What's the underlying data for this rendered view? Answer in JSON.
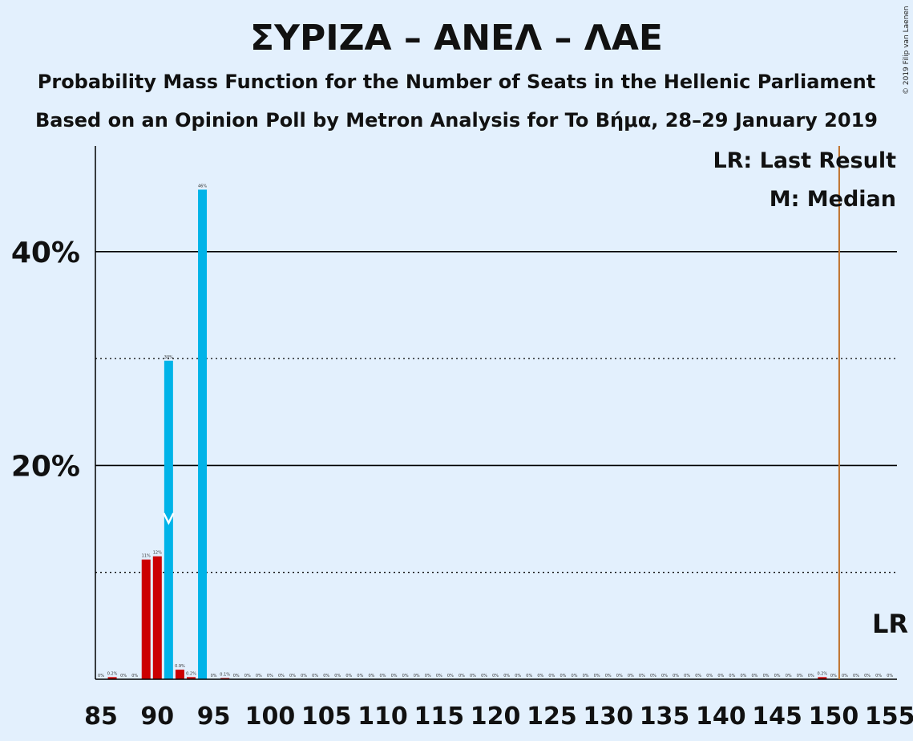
{
  "title": "ΣΥΡΙΖΑ – ΑΝΕΛ – ΛΑΕ",
  "subtitle": "Probability Mass Function for the Number of Seats in the Hellenic Parliament",
  "subtitle2": "Based on an Opinion Poll by Metron Analysis for To Βήμα, 28–29 January 2019",
  "copyright": "© 2019 Filip van Laenen",
  "legend": {
    "lr": "LR: Last Result",
    "median": "M: Median"
  },
  "lr_marker_label": "LR",
  "colors": {
    "background": "#e3f0fd",
    "red": "#cc0000",
    "blue": "#00b3e8",
    "last_result_line": "#c0722c",
    "text": "#111111"
  },
  "chart_data": {
    "type": "bar",
    "x_range": [
      85,
      155
    ],
    "x_ticks": [
      85,
      90,
      95,
      100,
      105,
      110,
      115,
      120,
      125,
      130,
      135,
      140,
      145,
      150,
      155
    ],
    "y_range": [
      0,
      50
    ],
    "y_ticks_major": [
      {
        "value": 20,
        "label": "20%"
      },
      {
        "value": 40,
        "label": "40%"
      }
    ],
    "y_gridlines_dotted": [
      10,
      30
    ],
    "median_seat": 91,
    "last_result_seat": 150.5,
    "series": [
      {
        "seat": 85,
        "value": 0,
        "label": "0%",
        "color": "red"
      },
      {
        "seat": 86,
        "value": 0.2,
        "label": "0.2%",
        "color": "red"
      },
      {
        "seat": 87,
        "value": 0,
        "label": "0%",
        "color": "red"
      },
      {
        "seat": 88,
        "value": 0,
        "label": "0%",
        "color": "red"
      },
      {
        "seat": 89,
        "value": 11.2,
        "label": "11%",
        "color": "red"
      },
      {
        "seat": 90,
        "value": 11.5,
        "label": "12%",
        "color": "red"
      },
      {
        "seat": 91,
        "value": 29.8,
        "label": "30%",
        "color": "blue"
      },
      {
        "seat": 92,
        "value": 0.9,
        "label": "0.9%",
        "color": "red"
      },
      {
        "seat": 93,
        "value": 0.2,
        "label": "0.2%",
        "color": "red"
      },
      {
        "seat": 94,
        "value": 45.8,
        "label": "46%",
        "color": "blue"
      },
      {
        "seat": 95,
        "value": 0,
        "label": "0%",
        "color": "red"
      },
      {
        "seat": 96,
        "value": 0.1,
        "label": "0.1%",
        "color": "red"
      },
      {
        "seat": 97,
        "value": 0,
        "label": "0%",
        "color": "red"
      },
      {
        "seat": 98,
        "value": 0,
        "label": "0%",
        "color": "red"
      },
      {
        "seat": 99,
        "value": 0,
        "label": "0%",
        "color": "red"
      },
      {
        "seat": 100,
        "value": 0,
        "label": "0%",
        "color": "red"
      },
      {
        "seat": 101,
        "value": 0,
        "label": "0%",
        "color": "red"
      },
      {
        "seat": 102,
        "value": 0,
        "label": "0%",
        "color": "red"
      },
      {
        "seat": 103,
        "value": 0,
        "label": "0%",
        "color": "red"
      },
      {
        "seat": 104,
        "value": 0,
        "label": "0%",
        "color": "red"
      },
      {
        "seat": 105,
        "value": 0,
        "label": "0%",
        "color": "red"
      },
      {
        "seat": 106,
        "value": 0,
        "label": "0%",
        "color": "red"
      },
      {
        "seat": 107,
        "value": 0,
        "label": "0%",
        "color": "red"
      },
      {
        "seat": 108,
        "value": 0,
        "label": "0%",
        "color": "red"
      },
      {
        "seat": 109,
        "value": 0,
        "label": "0%",
        "color": "red"
      },
      {
        "seat": 110,
        "value": 0,
        "label": "0%",
        "color": "red"
      },
      {
        "seat": 111,
        "value": 0,
        "label": "0%",
        "color": "red"
      },
      {
        "seat": 112,
        "value": 0,
        "label": "0%",
        "color": "red"
      },
      {
        "seat": 113,
        "value": 0,
        "label": "0%",
        "color": "red"
      },
      {
        "seat": 114,
        "value": 0,
        "label": "0%",
        "color": "red"
      },
      {
        "seat": 115,
        "value": 0,
        "label": "0%",
        "color": "red"
      },
      {
        "seat": 116,
        "value": 0,
        "label": "0%",
        "color": "red"
      },
      {
        "seat": 117,
        "value": 0,
        "label": "0%",
        "color": "red"
      },
      {
        "seat": 118,
        "value": 0,
        "label": "0%",
        "color": "red"
      },
      {
        "seat": 119,
        "value": 0,
        "label": "0%",
        "color": "red"
      },
      {
        "seat": 120,
        "value": 0,
        "label": "0%",
        "color": "red"
      },
      {
        "seat": 121,
        "value": 0,
        "label": "0%",
        "color": "red"
      },
      {
        "seat": 122,
        "value": 0,
        "label": "0%",
        "color": "red"
      },
      {
        "seat": 123,
        "value": 0,
        "label": "0%",
        "color": "red"
      },
      {
        "seat": 124,
        "value": 0,
        "label": "0%",
        "color": "red"
      },
      {
        "seat": 125,
        "value": 0,
        "label": "0%",
        "color": "red"
      },
      {
        "seat": 126,
        "value": 0,
        "label": "0%",
        "color": "red"
      },
      {
        "seat": 127,
        "value": 0,
        "label": "0%",
        "color": "red"
      },
      {
        "seat": 128,
        "value": 0,
        "label": "0%",
        "color": "red"
      },
      {
        "seat": 129,
        "value": 0,
        "label": "0%",
        "color": "red"
      },
      {
        "seat": 130,
        "value": 0,
        "label": "0%",
        "color": "red"
      },
      {
        "seat": 131,
        "value": 0,
        "label": "0%",
        "color": "red"
      },
      {
        "seat": 132,
        "value": 0,
        "label": "0%",
        "color": "red"
      },
      {
        "seat": 133,
        "value": 0,
        "label": "0%",
        "color": "red"
      },
      {
        "seat": 134,
        "value": 0,
        "label": "0%",
        "color": "red"
      },
      {
        "seat": 135,
        "value": 0,
        "label": "0%",
        "color": "red"
      },
      {
        "seat": 136,
        "value": 0,
        "label": "0%",
        "color": "red"
      },
      {
        "seat": 137,
        "value": 0,
        "label": "0%",
        "color": "red"
      },
      {
        "seat": 138,
        "value": 0,
        "label": "0%",
        "color": "red"
      },
      {
        "seat": 139,
        "value": 0,
        "label": "0%",
        "color": "red"
      },
      {
        "seat": 140,
        "value": 0,
        "label": "0%",
        "color": "red"
      },
      {
        "seat": 141,
        "value": 0,
        "label": "0%",
        "color": "red"
      },
      {
        "seat": 142,
        "value": 0,
        "label": "0%",
        "color": "red"
      },
      {
        "seat": 143,
        "value": 0,
        "label": "0%",
        "color": "red"
      },
      {
        "seat": 144,
        "value": 0,
        "label": "0%",
        "color": "red"
      },
      {
        "seat": 145,
        "value": 0,
        "label": "0%",
        "color": "red"
      },
      {
        "seat": 146,
        "value": 0,
        "label": "0%",
        "color": "red"
      },
      {
        "seat": 147,
        "value": 0,
        "label": "0%",
        "color": "red"
      },
      {
        "seat": 148,
        "value": 0,
        "label": "0%",
        "color": "red"
      },
      {
        "seat": 149,
        "value": 0.2,
        "label": "0.2%",
        "color": "red"
      },
      {
        "seat": 150,
        "value": 0,
        "label": "0%",
        "color": "red"
      },
      {
        "seat": 151,
        "value": 0,
        "label": "0%",
        "color": "red"
      },
      {
        "seat": 152,
        "value": 0,
        "label": "0%",
        "color": "red"
      },
      {
        "seat": 153,
        "value": 0,
        "label": "0%",
        "color": "red"
      },
      {
        "seat": 154,
        "value": 0,
        "label": "0%",
        "color": "red"
      },
      {
        "seat": 155,
        "value": 0,
        "label": "0%",
        "color": "red"
      }
    ]
  }
}
